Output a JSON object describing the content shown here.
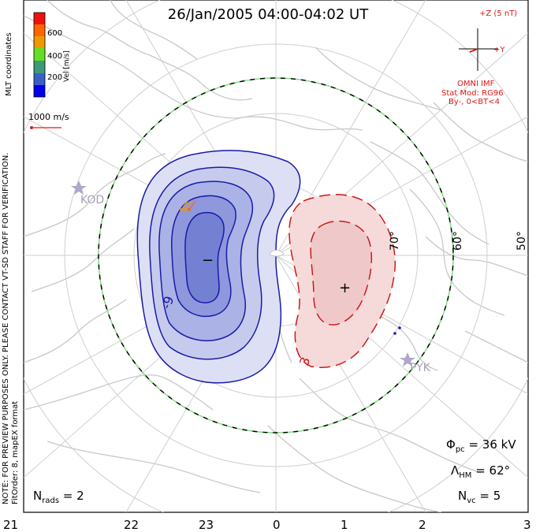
{
  "title": "26/Jan/2005 04:00-04:02 UT",
  "side_text": {
    "coordinates": "MLT coordinates",
    "note": "NOTE: FOR PREVIEW PURPOSES ONLY. PLEASE CONTACT VT-SD STAFF FOR VERIFICATION.",
    "fit": "FitOrder: 8, mapEX format"
  },
  "colorbar": {
    "label": "Vel [m/s]",
    "ticks": [
      "600",
      "400",
      "200"
    ],
    "colors": [
      "#0000ee",
      "#3a5fc8",
      "#3c9a78",
      "#66dd22",
      "#ee9900",
      "#ff6600",
      "#ee1111"
    ]
  },
  "scale_vector": {
    "label": "1000 m/s"
  },
  "imf": {
    "z_label": "+Z (5 nT)",
    "y_label": "+Y",
    "source": "OMNI IMF",
    "model": "Stat Mod: RG96",
    "condition": "By-, 0<BT<4",
    "color": "#e01818"
  },
  "mlt_labels": [
    "21",
    "22",
    "23",
    "0",
    "1",
    "2",
    "3"
  ],
  "lat_labels": [
    "70°",
    "60°",
    "50°"
  ],
  "radar_sites": [
    "KOD",
    "PYK"
  ],
  "contours": {
    "negative_label": "-9",
    "positive_label": "3",
    "negative_symbol": "−",
    "positive_symbol": "+",
    "negative_color": "#1a1aa8",
    "positive_color": "#cc1a1a"
  },
  "stats": {
    "phi": "Φ",
    "phi_sub": "pc",
    "phi_value": " = 36 kV",
    "lambda": "Λ",
    "lambda_sub": "HM",
    "lambda_value": " = 62°",
    "nvc": "N",
    "nvc_sub": "vc",
    "nvc_value": " = 5",
    "nrads": "N",
    "nrads_sub": "rads",
    "nrads_value": " = 2"
  }
}
